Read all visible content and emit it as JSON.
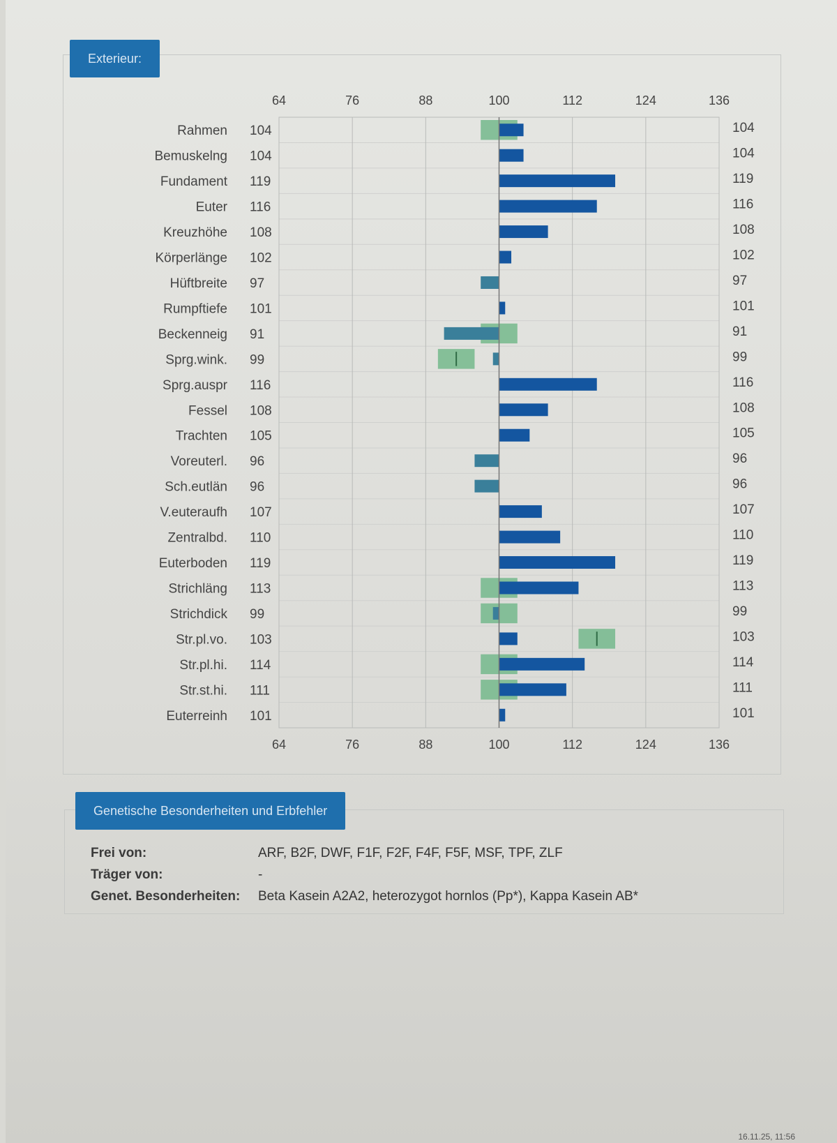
{
  "section_exterieur": "Exterieur:",
  "chart_data": {
    "type": "bar",
    "orientation": "horizontal",
    "xlim": [
      64,
      136
    ],
    "xticks": [
      64,
      76,
      88,
      100,
      112,
      124,
      136
    ],
    "baseline": 100,
    "grid": true,
    "categories": [
      "Rahmen",
      "Bemuskelng",
      "Fundament",
      "Euter",
      "Kreuzhöhe",
      "Körperlänge",
      "Hüftbreite",
      "Rumpftiefe",
      "Beckenneig",
      "Sprg.wink.",
      "Sprg.auspr",
      "Fessel",
      "Trachten",
      "Voreuterl.",
      "Sch.eutlän",
      "V.euteraufh",
      "Zentralbd.",
      "Euterboden",
      "Strichläng",
      "Strichdick",
      "Str.pl.vo.",
      "Str.pl.hi.",
      "Str.st.hi.",
      "Euterreinh"
    ],
    "values": [
      104,
      104,
      119,
      116,
      108,
      102,
      97,
      101,
      91,
      99,
      116,
      108,
      105,
      96,
      96,
      107,
      110,
      119,
      113,
      99,
      103,
      114,
      111,
      101
    ],
    "optimum_ranges": [
      {
        "category": "Rahmen",
        "range": [
          97,
          103
        ]
      },
      {
        "category": "Beckenneig",
        "range": [
          97,
          103
        ]
      },
      {
        "category": "Sprg.wink.",
        "range": [
          90,
          96
        ],
        "marker": 93
      },
      {
        "category": "Strichläng",
        "range": [
          97,
          103
        ]
      },
      {
        "category": "Strichdick",
        "range": [
          97,
          103
        ]
      },
      {
        "category": "Str.pl.vo.",
        "range": [
          113,
          119
        ],
        "marker": 116
      },
      {
        "category": "Str.pl.hi.",
        "range": [
          97,
          103
        ]
      },
      {
        "category": "Str.st.hi.",
        "range": [
          97,
          103
        ]
      }
    ],
    "colors": {
      "above": "#1456a0",
      "below": "#3a7f9a",
      "range": "#74b98c",
      "grid": "#b9bbb9"
    }
  },
  "genetics": {
    "title": "Genetische Besonderheiten und Erbfehler",
    "rows": [
      {
        "label": "Frei von:",
        "value": "ARF, B2F, DWF, F1F, F2F, F4F, F5F, MSF, TPF, ZLF"
      },
      {
        "label": "Träger von:",
        "value": "-"
      },
      {
        "label": "Genet. Besonderheiten:",
        "value": "Beta Kasein A2A2, heterozygot hornlos (Pp*), Kappa Kasein AB*"
      }
    ]
  },
  "footer_timestamp": "16.11.25, 11:56"
}
